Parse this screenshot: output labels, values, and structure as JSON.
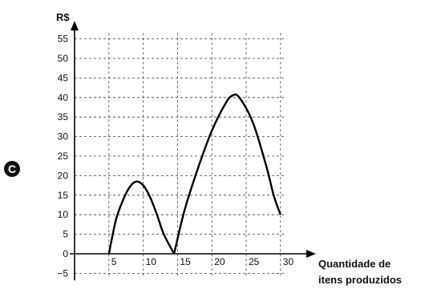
{
  "option_letter": "C",
  "chart_data": {
    "type": "line",
    "ylabel": "R$",
    "xlabel_lines": [
      "Quantidade de",
      "itens produzidos"
    ],
    "xlim": [
      0,
      31
    ],
    "ylim": [
      -7,
      60
    ],
    "x_ticks": [
      5,
      10,
      15,
      20,
      25,
      30
    ],
    "y_ticks": [
      -5,
      0,
      5,
      10,
      15,
      20,
      25,
      30,
      35,
      40,
      45,
      50,
      55
    ],
    "grid": "dashed",
    "series": [
      {
        "values_by_segment": [
          [
            [
              5,
              0
            ],
            [
              6,
              8.5
            ],
            [
              7,
              13.5
            ],
            [
              8,
              17
            ],
            [
              9,
              18.5
            ],
            [
              10,
              17.5
            ],
            [
              11,
              14.5
            ],
            [
              12,
              10
            ],
            [
              13,
              5
            ],
            [
              14.5,
              0
            ]
          ],
          [
            [
              14.5,
              0
            ],
            [
              16,
              11
            ],
            [
              18,
              22
            ],
            [
              20,
              31.5
            ],
            [
              22,
              38.5
            ],
            [
              23,
              40.5
            ],
            [
              24,
              40
            ],
            [
              26,
              33.5
            ],
            [
              28,
              22
            ],
            [
              29,
              15
            ],
            [
              30,
              10
            ]
          ]
        ]
      }
    ]
  }
}
